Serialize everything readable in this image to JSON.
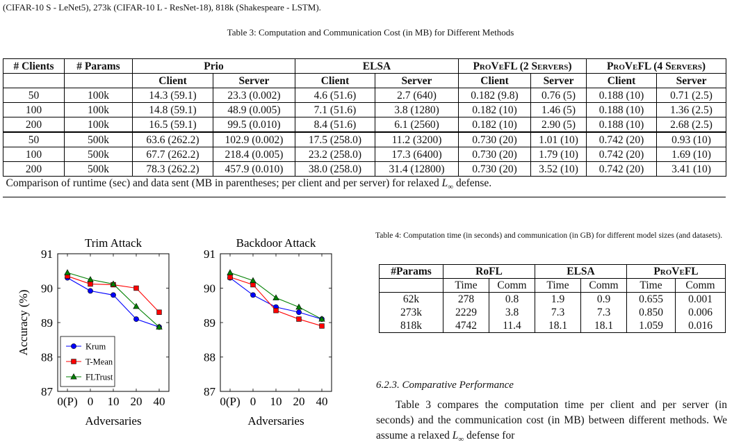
{
  "top_text": "(CIFAR-10 S - LeNet5), 273k (CIFAR-10 L - ResNet-18), 818k (Shakespeare - LSTM).",
  "table3": {
    "caption": "Table 3: Computation and Communication Cost (in MB) for Different Methods",
    "h_clients": "# Clients",
    "h_params": "# Params",
    "h_prio": "Prio",
    "h_elsa": "ELSA",
    "h_provefl2": "ProVeFL (2 Servers)",
    "h_provefl4": "ProVeFL (4 Servers)",
    "sub": [
      "Client",
      "Server",
      "Client",
      "Server",
      "Client",
      "Server",
      "Client",
      "Server"
    ],
    "rows": [
      [
        "50",
        "100k",
        "14.3 (59.1)",
        "23.3 (0.002)",
        "4.6 (51.6)",
        "2.7 (640)",
        "0.182 (9.8)",
        "0.76 (5)",
        "0.188 (10)",
        "0.71 (2.5)"
      ],
      [
        "100",
        "100k",
        "14.8 (59.1)",
        "48.9 (0.005)",
        "7.1 (51.6)",
        "3.8 (1280)",
        "0.182 (10)",
        "1.46 (5)",
        "0.188 (10)",
        "1.36 (2.5)"
      ],
      [
        "200",
        "100k",
        "16.5 (59.1)",
        "99.5 (0.010)",
        "8.4 (51.6)",
        "6.1 (2560)",
        "0.182 (10)",
        "2.90 (5)",
        "0.188 (10)",
        "2.68 (2.5)"
      ],
      [
        "50",
        "500k",
        "63.6 (262.2)",
        "102.9 (0.002)",
        "17.5 (258.0)",
        "11.2 (3200)",
        "0.730 (20)",
        "1.01 (10)",
        "0.742 (20)",
        "0.93 (10)"
      ],
      [
        "100",
        "500k",
        "67.7 (262.2)",
        "218.4 (0.005)",
        "23.2 (258.0)",
        "17.3 (6400)",
        "0.730 (20)",
        "1.79 (10)",
        "0.742 (20)",
        "1.69 (10)"
      ],
      [
        "200",
        "500k",
        "78.3 (262.2)",
        "457.9 (0.010)",
        "38.0 (258.0)",
        "31.4 (12800)",
        "0.730 (20)",
        "3.52 (10)",
        "0.742 (20)",
        "3.41 (10)"
      ]
    ],
    "footnote": "Comparison of runtime (sec) and data sent (MB in parentheses; per client and per server) for relaxed L∞ defense."
  },
  "table4": {
    "caption": "Table 4: Computation time (in seconds) and communication (in GB) for different model sizes (and datasets).",
    "h_params": "#Params",
    "h_rofl": "RoFL",
    "h_elsa": "ELSA",
    "h_provefl": "ProVeFL",
    "sub": [
      "Time",
      "Comm",
      "Time",
      "Comm",
      "Time",
      "Comm"
    ],
    "rows": [
      [
        "62k",
        "278",
        "0.8",
        "1.9",
        "0.9",
        "0.655",
        "0.001"
      ],
      [
        "273k",
        "2229",
        "3.8",
        "7.3",
        "7.3",
        "0.850",
        "0.006"
      ],
      [
        "818k",
        "4742",
        "11.4",
        "18.1",
        "18.1",
        "1.059",
        "0.016"
      ]
    ]
  },
  "section": {
    "heading": "6.2.3.  Comparative Performance",
    "paragraph": "Table 3 compares the computation time per client and per server (in seconds) and the communication cost (in MB) between different methods. We assume a relaxed L∞ defense for"
  },
  "chart_data": [
    {
      "type": "line",
      "title": "Trim Attack",
      "xlabel": "Adversaries",
      "ylabel": "Accuracy (%)",
      "categories": [
        "0(P)",
        "0",
        "10",
        "20",
        "40"
      ],
      "ylim": [
        87,
        91
      ],
      "yticks": [
        87,
        88,
        89,
        90,
        91
      ],
      "legend": "bottom-left",
      "series": [
        {
          "name": "Krum",
          "color": "#0000ff",
          "marker": "circle",
          "values": [
            90.3,
            89.92,
            89.8,
            89.1,
            88.87
          ]
        },
        {
          "name": "T-Mean",
          "color": "#ff0000",
          "marker": "square",
          "values": [
            90.35,
            90.12,
            90.1,
            90.0,
            89.3
          ]
        },
        {
          "name": "FLTrust",
          "color": "#008000",
          "marker": "triangle",
          "values": [
            90.45,
            90.25,
            90.12,
            89.47,
            88.87
          ]
        }
      ]
    },
    {
      "type": "line",
      "title": "Backdoor Attack",
      "xlabel": "Adversaries",
      "ylabel": "",
      "categories": [
        "0(P)",
        "0",
        "10",
        "20",
        "40"
      ],
      "ylim": [
        87,
        91
      ],
      "yticks": [
        87,
        88,
        89,
        90,
        91
      ],
      "series": [
        {
          "name": "Krum",
          "color": "#0000ff",
          "marker": "circle",
          "values": [
            90.3,
            89.8,
            89.45,
            89.3,
            89.1
          ]
        },
        {
          "name": "T-Mean",
          "color": "#ff0000",
          "marker": "square",
          "values": [
            90.32,
            90.1,
            89.35,
            89.1,
            88.9
          ]
        },
        {
          "name": "FLTrust",
          "color": "#008000",
          "marker": "triangle",
          "values": [
            90.45,
            90.22,
            89.72,
            89.45,
            89.1
          ]
        }
      ]
    }
  ]
}
